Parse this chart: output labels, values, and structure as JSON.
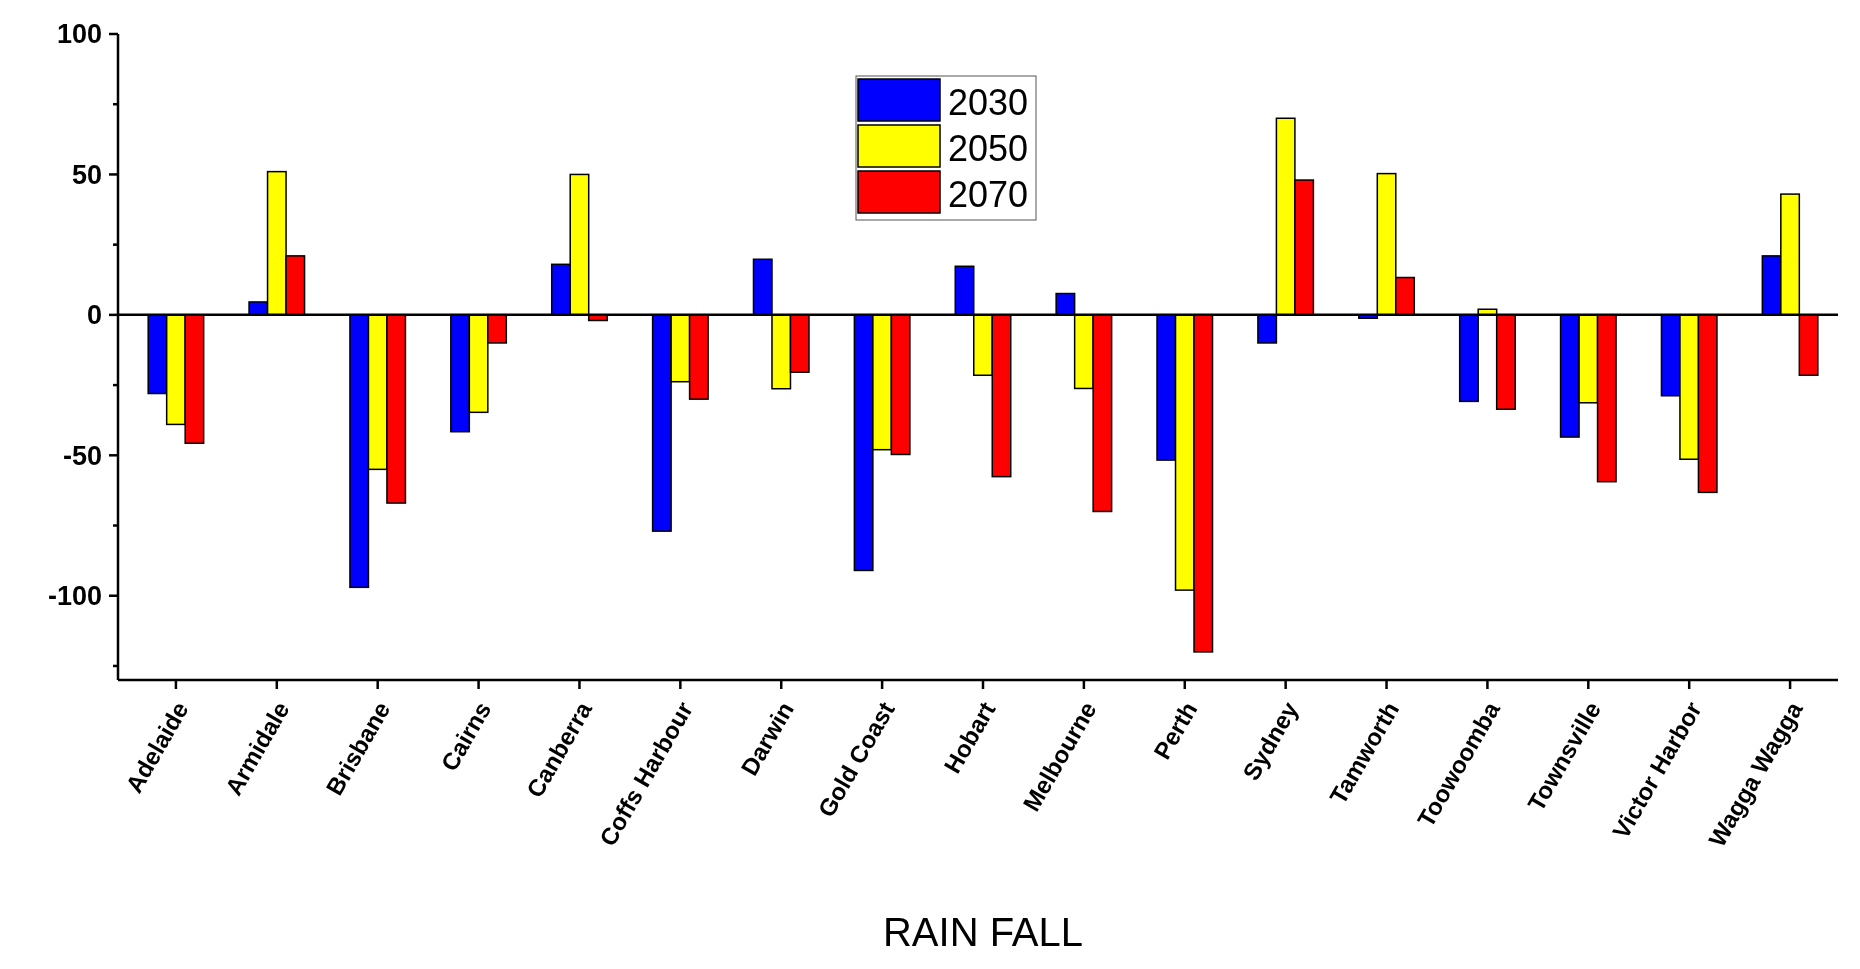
{
  "chart_data": {
    "type": "bar",
    "xlabel": "RAIN FALL",
    "categories": [
      "Adelaide",
      "Armidale",
      "Brisbane",
      "Cairns",
      "Canberra",
      "Coffs Harbour",
      "Darwin",
      "Gold Coast",
      "Hobart",
      "Melbourne",
      "Perth",
      "Sydney",
      "Tamworth",
      "Toowoomba",
      "Townsville",
      "Victor Harbor",
      "Wagga Wagga"
    ],
    "series": [
      {
        "name": "2030",
        "color": "#0000ff",
        "values": [
          -28,
          4.6,
          -97,
          -41.6,
          18,
          -77,
          19.8,
          -91,
          17.3,
          7.6,
          -51.7,
          -10,
          -1.2,
          -30.8,
          -43.5,
          -28.8,
          21
        ]
      },
      {
        "name": "2050",
        "color": "#ffff00",
        "values": [
          -39,
          51,
          -55,
          -34.7,
          50,
          -23.8,
          -26.3,
          -48,
          -21.5,
          -26.2,
          -98,
          70,
          50.3,
          2,
          -31.3,
          -51.4,
          43
        ]
      },
      {
        "name": "2070",
        "color": "#ff0000",
        "values": [
          -45.7,
          21,
          -67,
          -10,
          -2,
          -30,
          -20.4,
          -49.7,
          -57.6,
          -70,
          -120,
          48,
          13.3,
          -33.6,
          -59.4,
          -63.2,
          -21.5
        ]
      }
    ],
    "ylim": [
      -130,
      100
    ],
    "yticks": [
      {
        "value": -125,
        "label": null
      },
      -100,
      {
        "value": -75,
        "label": null
      },
      -50,
      {
        "value": -25,
        "label": null
      },
      0,
      {
        "value": 25,
        "label": null
      },
      50,
      {
        "value": 75,
        "label": null
      },
      100
    ],
    "legend": "top"
  }
}
